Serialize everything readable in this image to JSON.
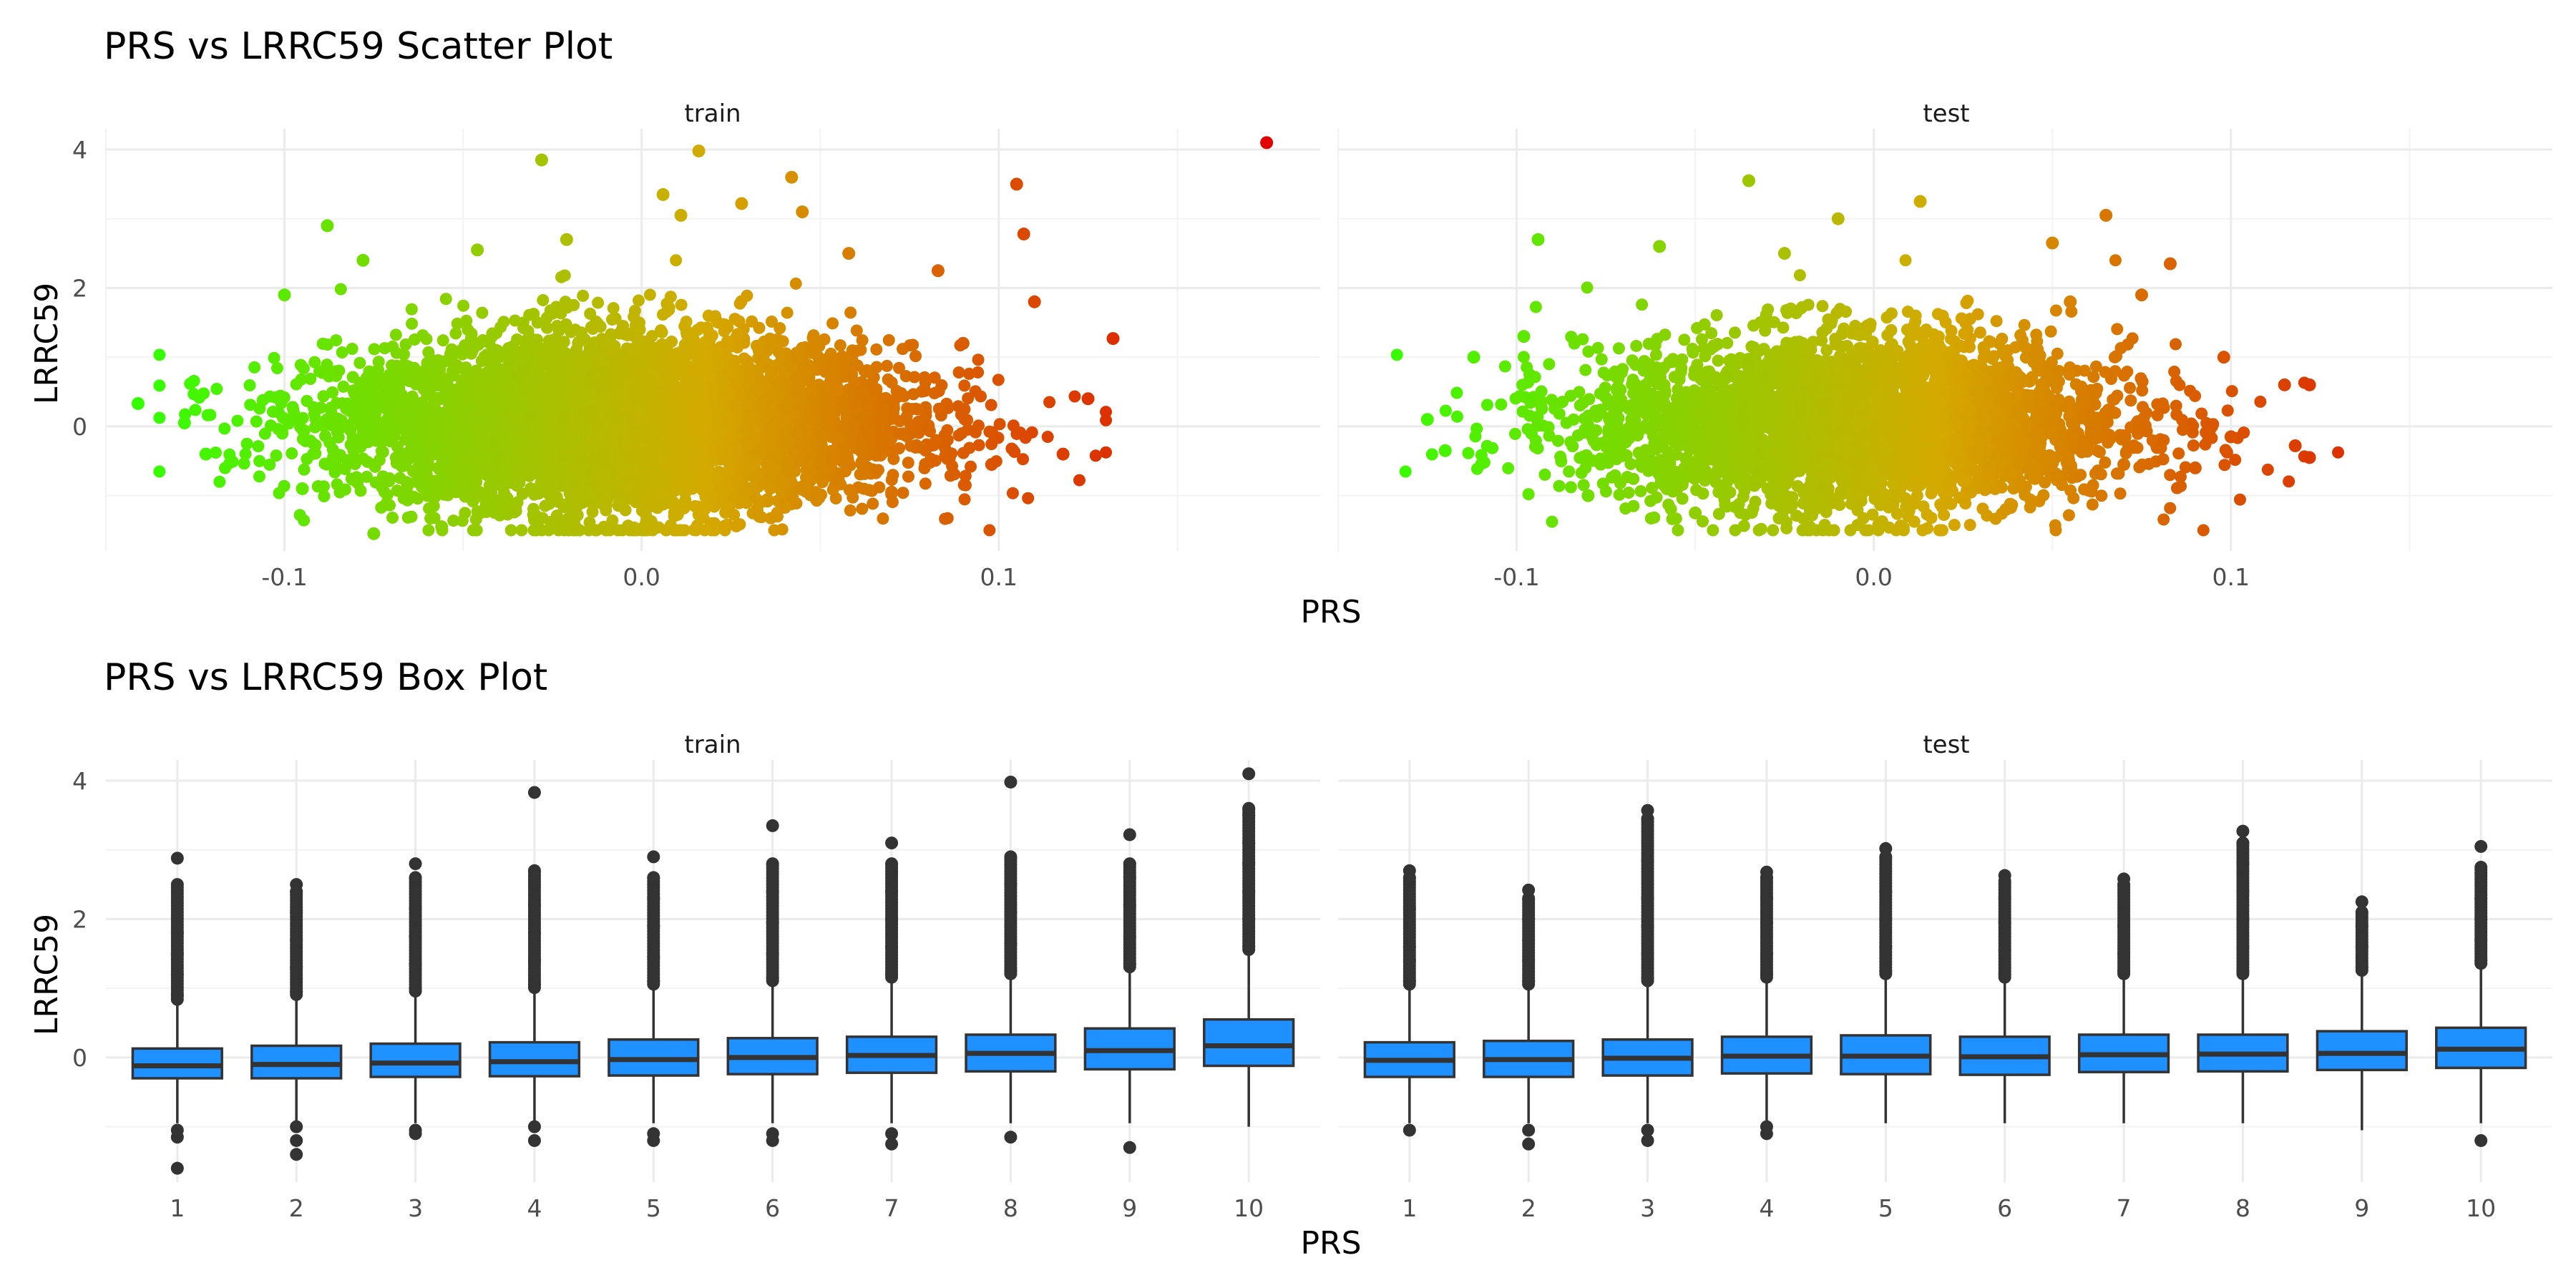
{
  "chart_data": [
    {
      "type": "scatter",
      "title": "PRS vs LRRC59 Scatter Plot",
      "xlabel": "PRS",
      "ylabel": "LRRC59",
      "facets": [
        "train",
        "test"
      ],
      "xlim": [
        -0.15,
        0.19
      ],
      "ylim": [
        -1.8,
        4.3
      ],
      "xticks": [
        -0.1,
        0.0,
        0.1
      ],
      "xtick_labels": [
        "-0.1",
        "0.0",
        "0.1"
      ],
      "yticks": [
        0,
        2,
        4
      ],
      "ytick_labels": [
        "0",
        "2",
        "4"
      ],
      "grid": true,
      "legend": "none",
      "color_scale": {
        "low": "#33ff00",
        "mid": "#d4aa00",
        "high": "#e00000"
      },
      "panels": [
        {
          "facet": "train",
          "points": [
            [
              0.175,
              4.1
            ],
            [
              0.016,
              3.98
            ],
            [
              -0.028,
              3.85
            ],
            [
              0.042,
              3.6
            ],
            [
              0.105,
              3.5
            ],
            [
              0.006,
              3.35
            ],
            [
              0.028,
              3.22
            ],
            [
              0.045,
              3.1
            ],
            [
              0.107,
              2.78
            ],
            [
              -0.088,
              2.9
            ],
            [
              -0.021,
              2.7
            ],
            [
              0.058,
              2.5
            ],
            [
              -0.046,
              2.55
            ],
            [
              0.083,
              2.25
            ],
            [
              0.11,
              1.8
            ],
            [
              0.132,
              1.27
            ],
            [
              -0.141,
              0.33
            ],
            [
              -0.128,
              0.05
            ],
            [
              -0.122,
              -0.4
            ],
            [
              -0.095,
              -0.9
            ],
            [
              -0.075,
              -1.55
            ],
            [
              -0.056,
              -1.45
            ],
            [
              -0.03,
              -1.35
            ],
            [
              0.033,
              -1.3
            ],
            [
              0.07,
              -0.95
            ],
            [
              0.098,
              -0.55
            ],
            [
              0.125,
              0.4
            ],
            [
              0.118,
              -0.4
            ],
            [
              0.09,
              1.2
            ],
            [
              -0.078,
              2.4
            ],
            [
              -0.1,
              1.9
            ],
            [
              0.011,
              3.05
            ]
          ]
        },
        {
          "facet": "test",
          "points": [
            [
              -0.035,
              3.55
            ],
            [
              0.013,
              3.25
            ],
            [
              0.065,
              3.05
            ],
            [
              -0.01,
              3.0
            ],
            [
              -0.094,
              2.7
            ],
            [
              0.05,
              2.65
            ],
            [
              0.083,
              2.35
            ],
            [
              -0.06,
              2.6
            ],
            [
              0.075,
              1.9
            ],
            [
              0.098,
              1.0
            ],
            [
              0.115,
              0.6
            ],
            [
              0.122,
              0.6
            ],
            [
              0.122,
              -0.45
            ],
            [
              0.118,
              -0.28
            ],
            [
              0.09,
              -0.6
            ],
            [
              0.07,
              -0.55
            ],
            [
              0.037,
              -1.2
            ],
            [
              -0.05,
              -1.25
            ],
            [
              -0.08,
              -1.0
            ],
            [
              -0.12,
              -0.35
            ],
            [
              -0.125,
              0.1
            ],
            [
              -0.112,
              1.0
            ],
            [
              -0.098,
              1.3
            ],
            [
              0.055,
              1.8
            ],
            [
              -0.025,
              2.5
            ],
            [
              0.1,
              -0.15
            ]
          ]
        }
      ]
    },
    {
      "type": "box",
      "title": "PRS vs LRRC59 Box Plot",
      "xlabel": "PRS",
      "ylabel": "LRRC59",
      "facets": [
        "train",
        "test"
      ],
      "categories": [
        "1",
        "2",
        "3",
        "4",
        "5",
        "6",
        "7",
        "8",
        "9",
        "10"
      ],
      "ylim": [
        -1.8,
        4.3
      ],
      "yticks": [
        0,
        2,
        4
      ],
      "ytick_labels": [
        "0",
        "2",
        "4"
      ],
      "fill_color": "#1e90ff",
      "grid": true,
      "panels": [
        {
          "facet": "train",
          "boxes": [
            {
              "q1": -0.3,
              "median": -0.12,
              "q3": 0.13,
              "whisker_low": -0.95,
              "whisker_high": 0.78,
              "out_high": [
                0.9,
                1.2,
                1.5,
                1.8,
                2.5,
                2.88
              ],
              "out_low": [
                -1.05,
                -1.15,
                -1.6
              ]
            },
            {
              "q1": -0.3,
              "median": -0.1,
              "q3": 0.17,
              "whisker_low": -0.95,
              "whisker_high": 0.85,
              "out_high": [
                0.95,
                1.3,
                1.7,
                2.1,
                2.4,
                2.5
              ],
              "out_low": [
                -1.0,
                -1.2,
                -1.4
              ]
            },
            {
              "q1": -0.28,
              "median": -0.08,
              "q3": 0.2,
              "whisker_low": -0.95,
              "whisker_high": 0.9,
              "out_high": [
                1.0,
                1.35,
                1.75,
                2.15,
                2.6,
                2.8
              ],
              "out_low": [
                -1.05,
                -1.1
              ]
            },
            {
              "q1": -0.27,
              "median": -0.06,
              "q3": 0.22,
              "whisker_low": -0.95,
              "whisker_high": 0.95,
              "out_high": [
                1.05,
                1.4,
                1.8,
                2.2,
                2.7,
                3.83
              ],
              "out_low": [
                -1.0,
                -1.2
              ]
            },
            {
              "q1": -0.26,
              "median": -0.03,
              "q3": 0.26,
              "whisker_low": -0.95,
              "whisker_high": 1.0,
              "out_high": [
                1.1,
                1.45,
                1.9,
                2.3,
                2.6,
                2.9
              ],
              "out_low": [
                -1.1,
                -1.2
              ]
            },
            {
              "q1": -0.24,
              "median": 0.0,
              "q3": 0.28,
              "whisker_low": -0.95,
              "whisker_high": 1.05,
              "out_high": [
                1.15,
                1.5,
                1.95,
                2.4,
                2.8,
                3.35
              ],
              "out_low": [
                -1.1,
                -1.2
              ]
            },
            {
              "q1": -0.22,
              "median": 0.03,
              "q3": 0.3,
              "whisker_low": -0.95,
              "whisker_high": 1.1,
              "out_high": [
                1.2,
                1.6,
                2.0,
                2.4,
                2.8,
                3.1
              ],
              "out_low": [
                -1.1,
                -1.25
              ]
            },
            {
              "q1": -0.2,
              "median": 0.06,
              "q3": 0.33,
              "whisker_low": -0.95,
              "whisker_high": 1.15,
              "out_high": [
                1.25,
                1.65,
                2.1,
                2.5,
                2.9,
                3.98
              ],
              "out_low": [
                -1.15
              ]
            },
            {
              "q1": -0.17,
              "median": 0.1,
              "q3": 0.42,
              "whisker_low": -0.95,
              "whisker_high": 1.25,
              "out_high": [
                1.35,
                1.75,
                2.2,
                2.6,
                2.8,
                3.22
              ],
              "out_low": [
                -1.3
              ]
            },
            {
              "q1": -0.12,
              "median": 0.17,
              "q3": 0.55,
              "whisker_low": -1.0,
              "whisker_high": 1.5,
              "out_high": [
                1.6,
                2.0,
                2.4,
                2.8,
                3.1,
                3.5,
                3.6,
                4.1
              ],
              "out_low": []
            }
          ]
        },
        {
          "facet": "test",
          "boxes": [
            {
              "q1": -0.28,
              "median": -0.04,
              "q3": 0.22,
              "whisker_low": -0.95,
              "whisker_high": 1.0,
              "out_high": [
                1.1,
                1.4,
                1.6,
                2.15,
                2.6,
                2.7
              ],
              "out_low": [
                -1.05
              ]
            },
            {
              "q1": -0.28,
              "median": -0.03,
              "q3": 0.24,
              "whisker_low": -0.95,
              "whisker_high": 1.0,
              "out_high": [
                1.1,
                1.4,
                1.7,
                2.0,
                2.3,
                2.42
              ],
              "out_low": [
                -1.05,
                -1.25
              ]
            },
            {
              "q1": -0.26,
              "median": -0.01,
              "q3": 0.26,
              "whisker_low": -0.95,
              "whisker_high": 1.05,
              "out_high": [
                1.15,
                1.5,
                1.9,
                2.3,
                2.85,
                3.45,
                3.57
              ],
              "out_low": [
                -1.05,
                -1.2
              ]
            },
            {
              "q1": -0.23,
              "median": 0.02,
              "q3": 0.3,
              "whisker_low": -0.95,
              "whisker_high": 1.1,
              "out_high": [
                1.2,
                1.5,
                1.95,
                2.3,
                2.6,
                2.68
              ],
              "out_low": [
                -1.0,
                -1.1
              ]
            },
            {
              "q1": -0.24,
              "median": 0.02,
              "q3": 0.32,
              "whisker_low": -0.95,
              "whisker_high": 1.15,
              "out_high": [
                1.25,
                1.6,
                2.0,
                2.4,
                2.9,
                3.02
              ],
              "out_low": []
            },
            {
              "q1": -0.25,
              "median": 0.01,
              "q3": 0.3,
              "whisker_low": -0.95,
              "whisker_high": 1.1,
              "out_high": [
                1.2,
                1.55,
                1.95,
                2.3,
                2.55,
                2.63
              ],
              "out_low": []
            },
            {
              "q1": -0.21,
              "median": 0.04,
              "q3": 0.33,
              "whisker_low": -0.95,
              "whisker_high": 1.15,
              "out_high": [
                1.25,
                1.5,
                1.9,
                2.5,
                2.58
              ],
              "out_low": []
            },
            {
              "q1": -0.2,
              "median": 0.05,
              "q3": 0.33,
              "whisker_low": -0.95,
              "whisker_high": 1.15,
              "out_high": [
                1.25,
                1.6,
                2.0,
                2.4,
                2.8,
                3.1,
                3.27
              ],
              "out_low": []
            },
            {
              "q1": -0.18,
              "median": 0.06,
              "q3": 0.38,
              "whisker_low": -1.05,
              "whisker_high": 1.2,
              "out_high": [
                1.3,
                1.6,
                1.9,
                2.1,
                2.25
              ],
              "out_low": []
            },
            {
              "q1": -0.15,
              "median": 0.12,
              "q3": 0.43,
              "whisker_low": -0.95,
              "whisker_high": 1.3,
              "out_high": [
                1.4,
                1.7,
                2.0,
                2.3,
                2.75,
                3.05
              ],
              "out_low": [
                -1.2
              ]
            }
          ]
        }
      ]
    }
  ]
}
